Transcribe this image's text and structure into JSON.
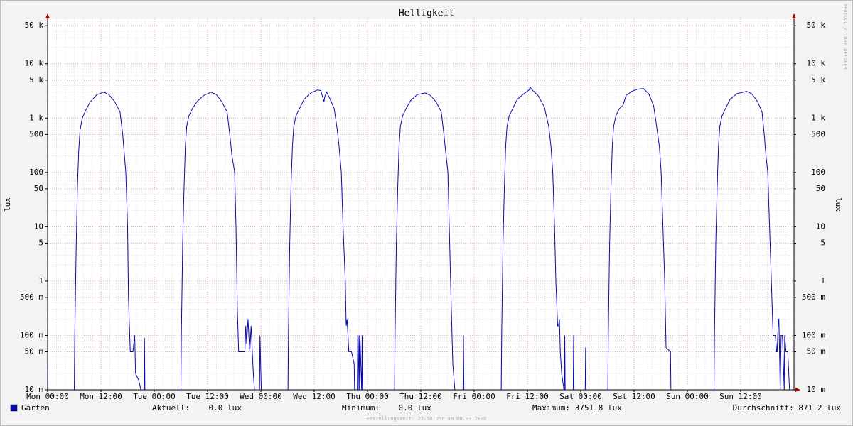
{
  "chart_data": {
    "type": "line",
    "title": "Helligkeit",
    "ylabel": "lux",
    "watermark": "RRDTOOL / TOBI OETIKER",
    "log_y": true,
    "grid": true,
    "ylim": [
      0.01,
      66000
    ],
    "yticks": [
      {
        "value": 0.01,
        "label": "10 m"
      },
      {
        "value": 0.05,
        "label": "50 m"
      },
      {
        "value": 0.1,
        "label": "100 m"
      },
      {
        "value": 0.5,
        "label": "500 m"
      },
      1,
      5,
      10,
      50,
      100,
      500,
      {
        "value": 1000,
        "label": "1 k"
      },
      {
        "value": 5000,
        "label": "5 k"
      },
      {
        "value": 10000,
        "label": "10 k"
      },
      {
        "value": 50000,
        "label": "50 k"
      }
    ],
    "xlim": [
      0,
      168
    ],
    "xticks": [
      {
        "value": 0,
        "label": "Mon 00:00"
      },
      {
        "value": 12,
        "label": "Mon 12:00"
      },
      {
        "value": 24,
        "label": "Tue 00:00"
      },
      {
        "value": 36,
        "label": "Tue 12:00"
      },
      {
        "value": 48,
        "label": "Wed 00:00"
      },
      {
        "value": 60,
        "label": "Wed 12:00"
      },
      {
        "value": 72,
        "label": "Thu 00:00"
      },
      {
        "value": 84,
        "label": "Thu 12:00"
      },
      {
        "value": 96,
        "label": "Fri 00:00"
      },
      {
        "value": 108,
        "label": "Fri 12:00"
      },
      {
        "value": 120,
        "label": "Sat 00:00"
      },
      {
        "value": 132,
        "label": "Sat 12:00"
      },
      {
        "value": 144,
        "label": "Sun 00:00"
      },
      {
        "value": 156,
        "label": "Sun 12:00"
      }
    ],
    "x": [
      0,
      0.1,
      6.0,
      6.1,
      6.4,
      6.7,
      7.0,
      7.3,
      7.8,
      8.6,
      9.6,
      11.1,
      12.6,
      13.8,
      15.1,
      16.3,
      16.9,
      17.3,
      17.6,
      18.0,
      18.2,
      18.6,
      19.2,
      19.6,
      19.8,
      20.5,
      21.1,
      21.7,
      21.8,
      21.9,
      30.0,
      30.1,
      30.4,
      30.7,
      31.0,
      31.3,
      31.8,
      32.6,
      33.6,
      35.1,
      36.8,
      38.0,
      39.2,
      40.4,
      41.0,
      41.5,
      42.1,
      42.4,
      42.7,
      43.0,
      44.4,
      44.6,
      44.8,
      45.1,
      45.5,
      45.8,
      46.3,
      46.6,
      47.7,
      47.8,
      48.1,
      54.1,
      54.2,
      54.5,
      54.8,
      55.1,
      55.4,
      55.9,
      56.7,
      57.7,
      59.2,
      60.8,
      61.5,
      62.2,
      62.4,
      62.8,
      63.5,
      64.5,
      65.2,
      65.6,
      66.1,
      66.5,
      67.0,
      67.2,
      67.4,
      67.8,
      68.4,
      69.0,
      69.1,
      69.7,
      69.8,
      69.9,
      70.1,
      70.2,
      70.3,
      70.7,
      70.8,
      70.9,
      78.1,
      78.2,
      78.5,
      78.8,
      79.1,
      79.4,
      79.9,
      80.7,
      81.7,
      83.2,
      85.0,
      86.2,
      87.4,
      88.6,
      89.2,
      89.7,
      90.1,
      90.4,
      90.8,
      91.2,
      91.7,
      93.5,
      93.6,
      93.7,
      102.1,
      102.2,
      102.5,
      102.8,
      103.1,
      103.4,
      103.9,
      104.7,
      105.7,
      107.2,
      108.4,
      108.6,
      108.9,
      110.4,
      111.8,
      112.8,
      113.3,
      113.7,
      114.1,
      114.4,
      114.8,
      115.0,
      115.2,
      115.4,
      115.7,
      116.3,
      116.4,
      116.5,
      116.6,
      118.3,
      118.4,
      118.5,
      121.0,
      121.1,
      121.2,
      126.1,
      126.2,
      126.5,
      126.8,
      127.1,
      127.4,
      127.9,
      128.7,
      129.5,
      130.2,
      131.5,
      132.8,
      134.1,
      135.3,
      136.4,
      137.2,
      137.7,
      138.1,
      138.5,
      138.9,
      139.2,
      140.2,
      140.3,
      150.0,
      150.1,
      150.4,
      150.7,
      151.0,
      151.3,
      151.8,
      152.6,
      153.6,
      155.1,
      157.3,
      158.5,
      159.8,
      160.8,
      161.3,
      161.7,
      162.1,
      162.5,
      162.9,
      163.3,
      163.8,
      164.1,
      164.2,
      164.5,
      164.6,
      164.9,
      165.1,
      165.4,
      165.8,
      165.9,
      166.2,
      166.6,
      167.0,
      167.1,
      168
    ],
    "series": [
      {
        "name": "Garten",
        "color": "#0a0aa8",
        "values": [
          0.05,
          0,
          0,
          0.08,
          3,
          50,
          250,
          600,
          1000,
          1400,
          2000,
          2700,
          3000,
          2700,
          2000,
          1300,
          500,
          200,
          100,
          10,
          0.5,
          0.05,
          0.05,
          0.1,
          0.02,
          0.015,
          0,
          0,
          0.09,
          0,
          0,
          0.1,
          5,
          50,
          300,
          700,
          1100,
          1500,
          2000,
          2600,
          3000,
          2700,
          2000,
          1300,
          500,
          200,
          100,
          10,
          0.3,
          0.05,
          0.05,
          0.15,
          0.07,
          0.2,
          0.05,
          0.15,
          0.02,
          0,
          0,
          0.1,
          0,
          0,
          0.1,
          5,
          60,
          300,
          700,
          1100,
          1500,
          2200,
          2900,
          3300,
          3200,
          2000,
          2500,
          3000,
          2300,
          1500,
          600,
          300,
          100,
          10,
          1,
          0.15,
          0.2,
          0.05,
          0.05,
          0.03,
          0,
          0,
          0.1,
          0,
          0.1,
          0,
          0.1,
          0,
          0.1,
          0,
          0,
          0.1,
          5,
          50,
          300,
          700,
          1100,
          1500,
          2100,
          2700,
          2900,
          2600,
          2000,
          1300,
          500,
          200,
          100,
          10,
          0.5,
          0.03,
          0,
          0,
          0.1,
          0,
          0,
          0.1,
          5,
          50,
          300,
          700,
          1100,
          1500,
          2200,
          2800,
          3300,
          3751.8,
          3400,
          2600,
          1600,
          700,
          300,
          100,
          10,
          1,
          0.15,
          0.15,
          0.2,
          0.05,
          0.02,
          0,
          0.1,
          0,
          0,
          0,
          0.1,
          0,
          0,
          0.06,
          0,
          0,
          0.1,
          5,
          50,
          300,
          700,
          1100,
          1500,
          1700,
          2600,
          3100,
          3400,
          3500,
          2800,
          1700,
          600,
          300,
          100,
          10,
          1,
          0.06,
          0.05,
          0,
          0,
          0.1,
          5,
          50,
          300,
          700,
          1100,
          1500,
          2200,
          2800,
          3100,
          2800,
          2000,
          1300,
          500,
          200,
          100,
          10,
          1,
          0.1,
          0.1,
          0.05,
          0.05,
          0.2,
          0.2,
          0.01,
          0.1,
          0.1,
          0.01,
          0.1,
          0.05,
          0.05,
          0.01,
          0,
          0
        ]
      }
    ],
    "stats": [
      "Aktuell:    0.0 lux",
      "Minimum:    0.0 lux",
      "Maximum: 3751.8 lux",
      "Durchschnitt: 871.2 lux"
    ],
    "footer": "Erstellungszeit: 23:58 Uhr am 08.03.2026"
  }
}
